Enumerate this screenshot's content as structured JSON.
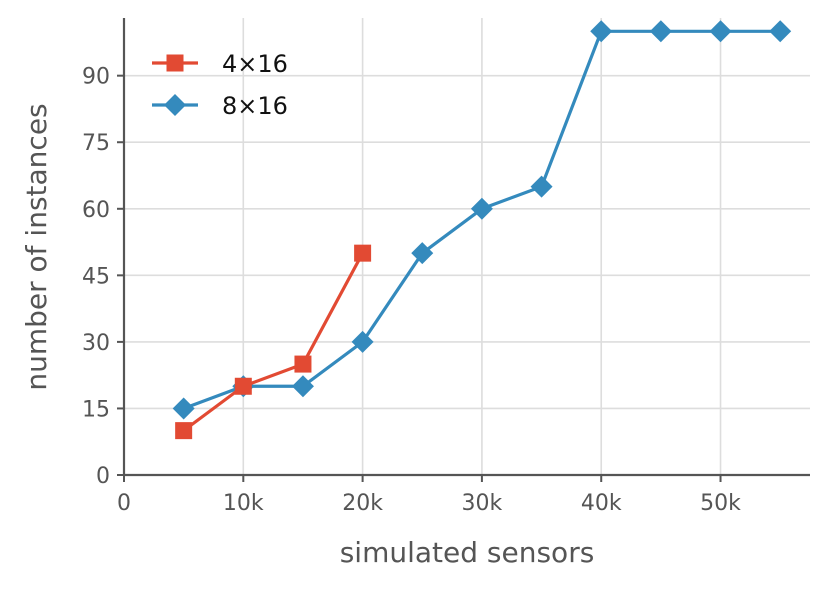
{
  "chart_data": {
    "type": "line",
    "xlabel": "simulated sensors",
    "ylabel": "number of instances",
    "xlim": [
      0,
      57500
    ],
    "ylim": [
      0,
      103
    ],
    "x_ticks": [
      0,
      10000,
      20000,
      30000,
      40000,
      50000
    ],
    "x_tick_labels": [
      "0",
      "10k",
      "20k",
      "30k",
      "40k",
      "50k"
    ],
    "y_ticks": [
      0,
      15,
      30,
      45,
      60,
      75,
      90
    ],
    "y_tick_labels": [
      "0",
      "15",
      "30",
      "45",
      "60",
      "75",
      "90"
    ],
    "grid": true,
    "legend_position": "top-left",
    "series": [
      {
        "name": "4×16",
        "color": "#e24a33",
        "marker": "square",
        "x": [
          5000,
          10000,
          15000,
          20000
        ],
        "y": [
          10,
          20,
          25,
          50
        ]
      },
      {
        "name": "8×16",
        "color": "#348abd",
        "marker": "diamond",
        "x": [
          5000,
          10000,
          15000,
          20000,
          25000,
          30000,
          35000,
          40000,
          45000,
          50000,
          55000
        ],
        "y": [
          15,
          20,
          20,
          30,
          50,
          60,
          65,
          100,
          100,
          100,
          100
        ]
      }
    ]
  }
}
